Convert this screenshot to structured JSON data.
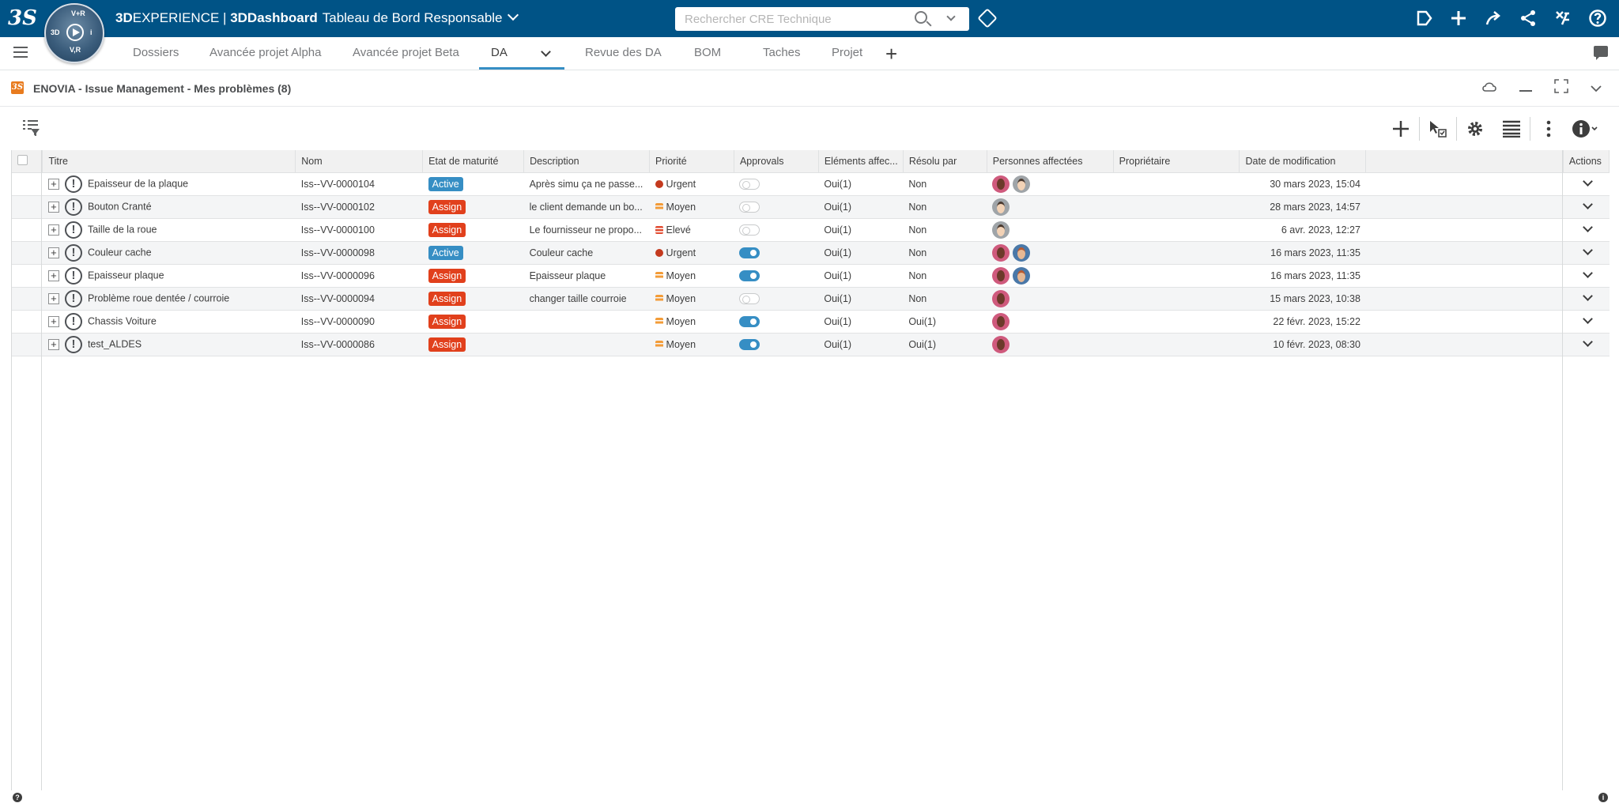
{
  "topbar": {
    "logo": "3S",
    "compass": {
      "top": "V+R",
      "left": "3D",
      "right": "i",
      "bottom": "V,R"
    },
    "brand_bold": "3D",
    "brand_thin": "EXPERIENCE",
    "brand_sep": " | ",
    "brand_app": "3DDashboard",
    "dashboard_name": "Tableau de Bord Responsable",
    "search_placeholder": "Rechercher CRE Technique"
  },
  "tabs": [
    {
      "label": "Dossiers"
    },
    {
      "label": "Avancée projet Alpha"
    },
    {
      "label": "Avancée projet Beta"
    },
    {
      "label": "DA"
    },
    {
      "label": "Revue des DA"
    },
    {
      "label": "BOM"
    },
    {
      "label": "Taches"
    },
    {
      "label": "Projet"
    }
  ],
  "widget": {
    "title": "ENOVIA - Issue Management - Mes problèmes (8)"
  },
  "table": {
    "headers": {
      "titre": "Titre",
      "nom": "Nom",
      "etat": "Etat de maturité",
      "description": "Description",
      "priorite": "Priorité",
      "approvals": "Approvals",
      "elements": "Eléments affec...",
      "resolu": "Résolu par",
      "personnes": "Personnes affectées",
      "proprietaire": "Propriétaire",
      "date": "Date de modification",
      "actions": "Actions"
    },
    "rows": [
      {
        "titre": "Epaisseur de la plaque",
        "nom": "Iss--VV-0000104",
        "etat": "Active",
        "description": "Après simu ça ne passe...",
        "priorite": "Urgent",
        "approval_on": false,
        "elements": "Oui(1)",
        "resolu": "Non",
        "personnes": [
          "a",
          "b"
        ],
        "proprietaire": "",
        "date": "30 mars 2023, 15:04"
      },
      {
        "titre": "Bouton Cranté",
        "nom": "Iss--VV-0000102",
        "etat": "Assign",
        "description": "le client demande un bo...",
        "priorite": "Moyen",
        "approval_on": false,
        "elements": "Oui(1)",
        "resolu": "Non",
        "personnes": [
          "b"
        ],
        "proprietaire": "",
        "date": "28 mars 2023, 14:57"
      },
      {
        "titre": "Taille de la roue",
        "nom": "Iss--VV-0000100",
        "etat": "Assign",
        "description": "Le fournisseur ne propo...",
        "priorite": "Elevé",
        "approval_on": false,
        "elements": "Oui(1)",
        "resolu": "Non",
        "personnes": [
          "b"
        ],
        "proprietaire": "",
        "date": "6 avr. 2023, 12:27"
      },
      {
        "titre": "Couleur cache",
        "nom": "Iss--VV-0000098",
        "etat": "Active",
        "description": "Couleur cache",
        "priorite": "Urgent",
        "approval_on": true,
        "elements": "Oui(1)",
        "resolu": "Non",
        "personnes": [
          "a",
          "c"
        ],
        "proprietaire": "",
        "date": "16 mars 2023, 11:35"
      },
      {
        "titre": "Epaisseur plaque",
        "nom": "Iss--VV-0000096",
        "etat": "Assign",
        "description": "Epaisseur plaque",
        "priorite": "Moyen",
        "approval_on": true,
        "elements": "Oui(1)",
        "resolu": "Non",
        "personnes": [
          "a",
          "c"
        ],
        "proprietaire": "",
        "date": "16 mars 2023, 11:35"
      },
      {
        "titre": "Problème roue dentée / courroie",
        "nom": "Iss--VV-0000094",
        "etat": "Assign",
        "description": "changer taille courroie",
        "priorite": "Moyen",
        "approval_on": false,
        "elements": "Oui(1)",
        "resolu": "Non",
        "personnes": [
          "a"
        ],
        "proprietaire": "",
        "date": "15 mars 2023, 10:38"
      },
      {
        "titre": "Chassis Voiture",
        "nom": "Iss--VV-0000090",
        "etat": "Assign",
        "description": "",
        "priorite": "Moyen",
        "approval_on": true,
        "elements": "Oui(1)",
        "resolu": "Oui(1)",
        "personnes": [
          "a"
        ],
        "proprietaire": "",
        "date": "22 févr. 2023, 15:22"
      },
      {
        "titre": "test_ALDES",
        "nom": "Iss--VV-0000086",
        "etat": "Assign",
        "description": "",
        "priorite": "Moyen",
        "approval_on": true,
        "elements": "Oui(1)",
        "resolu": "Oui(1)",
        "personnes": [
          "a"
        ],
        "proprietaire": "",
        "date": "10 févr. 2023, 08:30"
      }
    ]
  },
  "colors": {
    "topbar": "#005386",
    "accent": "#368ec4",
    "assign": "#e1401c",
    "urgent": "#c43a1e",
    "moyen": "#f39c38"
  }
}
